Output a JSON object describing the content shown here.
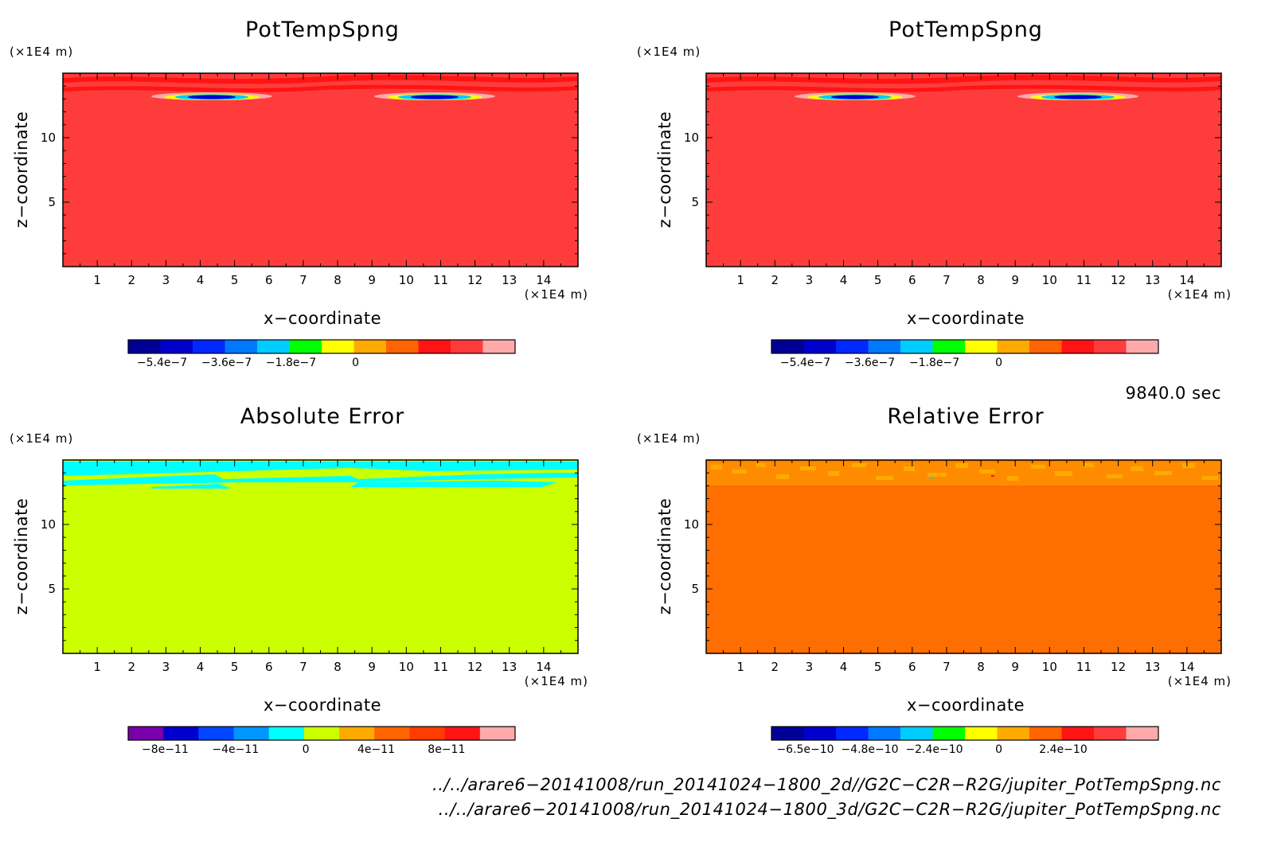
{
  "panels": [
    {
      "title": "PotTempSpng",
      "unit_label": "(×1E4 m)",
      "xlabel": "x−coordinate",
      "ylabel": "z−coordinate",
      "x_unit_label": "(×1E4 m)",
      "xticks": [
        "1",
        "2",
        "3",
        "4",
        "5",
        "6",
        "7",
        "8",
        "9",
        "10",
        "11",
        "12",
        "13",
        "14"
      ],
      "yticks": [
        "5",
        "10"
      ],
      "colorbar": {
        "colors": [
          "#000096",
          "#0000cd",
          "#0028ff",
          "#0078ff",
          "#00ccff",
          "#00ff00",
          "#ffff00",
          "#ffaa00",
          "#ff6400",
          "#ff1414",
          "#ff3c3c",
          "#ffaaaa"
        ],
        "tick_labels": [
          "−5.4e−7",
          "−3.6e−7",
          "−1.8e−7",
          "0"
        ]
      }
    },
    {
      "title": "PotTempSpng",
      "unit_label": "(×1E4 m)",
      "xlabel": "x−coordinate",
      "ylabel": "z−coordinate",
      "x_unit_label": "(×1E4 m)",
      "xticks": [
        "1",
        "2",
        "3",
        "4",
        "5",
        "6",
        "7",
        "8",
        "9",
        "10",
        "11",
        "12",
        "13",
        "14"
      ],
      "yticks": [
        "5",
        "10"
      ],
      "colorbar": {
        "colors": [
          "#000096",
          "#0000cd",
          "#0028ff",
          "#0078ff",
          "#00ccff",
          "#00ff00",
          "#ffff00",
          "#ffaa00",
          "#ff6400",
          "#ff1414",
          "#ff3c3c",
          "#ffaaaa"
        ],
        "tick_labels": [
          "−5.4e−7",
          "−3.6e−7",
          "−1.8e−7",
          "0"
        ]
      }
    },
    {
      "title": "Absolute Error",
      "unit_label": "(×1E4 m)",
      "xlabel": "x−coordinate",
      "ylabel": "z−coordinate",
      "x_unit_label": "(×1E4 m)",
      "xticks": [
        "1",
        "2",
        "3",
        "4",
        "5",
        "6",
        "7",
        "8",
        "9",
        "10",
        "11",
        "12",
        "13",
        "14"
      ],
      "yticks": [
        "5",
        "10"
      ],
      "colorbar": {
        "colors": [
          "#7800aa",
          "#0000cd",
          "#0046ff",
          "#0096ff",
          "#00ffff",
          "#ccff00",
          "#ffaa00",
          "#ff6400",
          "#ff3c00",
          "#ff1414",
          "#ffaaaa"
        ],
        "tick_labels": [
          "−8e−11",
          "−4e−11",
          "0",
          "4e−11",
          "8e−11"
        ]
      }
    },
    {
      "title": "Relative Error",
      "unit_label": "(×1E4 m)",
      "xlabel": "x−coordinate",
      "ylabel": "z−coordinate",
      "x_unit_label": "(×1E4 m)",
      "xticks": [
        "1",
        "2",
        "3",
        "4",
        "5",
        "6",
        "7",
        "8",
        "9",
        "10",
        "11",
        "12",
        "13",
        "14"
      ],
      "yticks": [
        "5",
        "10"
      ],
      "colorbar": {
        "colors": [
          "#000096",
          "#0000cd",
          "#0028ff",
          "#0078ff",
          "#00ccff",
          "#00ff00",
          "#ffff00",
          "#ffaa00",
          "#ff6400",
          "#ff1414",
          "#ff3c3c",
          "#ffaaaa"
        ],
        "tick_labels": [
          "−6.5e−10",
          "−4.8e−10",
          "−2.4e−10",
          "0",
          "2.4e−10"
        ]
      }
    }
  ],
  "timestamp": "9840.0 sec",
  "file_paths": [
    "../../arare6−20141008/run_20141024−1800_2d//G2C−C2R−R2G/jupiter_PotTempSpng.nc",
    "../../arare6−20141008/run_20141024−1800_3d/G2C−C2R−R2G/jupiter_PotTempSpng.nc"
  ],
  "chart_data": [
    {
      "type": "heatmap",
      "title": "PotTempSpng",
      "xlabel": "x−coordinate",
      "ylabel": "z−coordinate",
      "xlim": [
        0,
        15
      ],
      "ylim": [
        0,
        15
      ],
      "x_unit": "(×1E4 m)",
      "z_unit": "(×1E4 m)",
      "background_value": "0",
      "features": [
        {
          "x_center": 4.0,
          "z": 13.1,
          "min_value": -5.4e-07
        },
        {
          "x_center": 11.0,
          "z": 13.1,
          "min_value": -5.4e-07
        }
      ],
      "colorbar_ticks": [
        "−5.4e−7",
        "−3.6e−7",
        "−1.8e−7",
        "0"
      ]
    },
    {
      "type": "heatmap",
      "title": "PotTempSpng",
      "xlabel": "x−coordinate",
      "ylabel": "z−coordinate",
      "xlim": [
        0,
        15
      ],
      "ylim": [
        0,
        15
      ],
      "x_unit": "(×1E4 m)",
      "z_unit": "(×1E4 m)",
      "background_value": "0",
      "features": [
        {
          "x_center": 4.0,
          "z": 13.1,
          "min_value": -5.4e-07
        },
        {
          "x_center": 11.0,
          "z": 13.1,
          "min_value": -5.4e-07
        }
      ],
      "colorbar_ticks": [
        "−5.4e−7",
        "−3.6e−7",
        "−1.8e−7",
        "0"
      ]
    },
    {
      "type": "heatmap",
      "title": "Absolute Error",
      "xlabel": "x−coordinate",
      "ylabel": "z−coordinate",
      "xlim": [
        0,
        15
      ],
      "ylim": [
        0,
        15
      ],
      "x_unit": "(×1E4 m)",
      "z_unit": "(×1E4 m)",
      "background_value": "0",
      "colorbar_ticks": [
        "−8e−11",
        "−4e−11",
        "0",
        "4e−11",
        "8e−11"
      ]
    },
    {
      "type": "heatmap",
      "title": "Relative Error",
      "xlabel": "x−coordinate",
      "ylabel": "z−coordinate",
      "xlim": [
        0,
        15
      ],
      "ylim": [
        0,
        15
      ],
      "x_unit": "(×1E4 m)",
      "z_unit": "(×1E4 m)",
      "background_value": "0",
      "colorbar_ticks": [
        "−6.5e−10",
        "−4.8e−10",
        "−2.4e−10",
        "0",
        "2.4e−10"
      ]
    }
  ]
}
